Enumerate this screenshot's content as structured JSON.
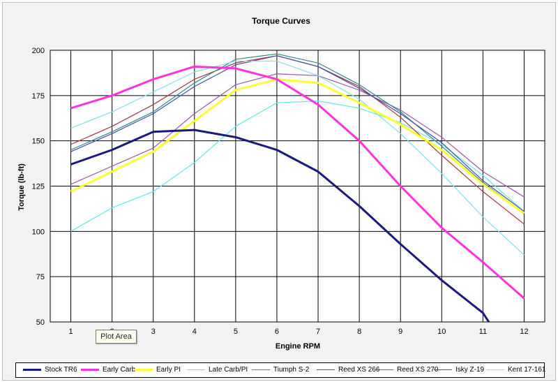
{
  "tooltip": "Plot Area",
  "chart_data": {
    "type": "line",
    "title": "Torque Curves",
    "xlabel": "Engine  RPM",
    "ylabel": "Torque (lb-ft)",
    "x": [
      1,
      2,
      3,
      4,
      5,
      6,
      7,
      8,
      9,
      10,
      11,
      12
    ],
    "xlim": [
      0.5,
      12.5
    ],
    "ylim": [
      50,
      200
    ],
    "yticks": [
      50,
      75,
      100,
      125,
      150,
      175,
      200
    ],
    "grid": true,
    "legend_position": "bottom",
    "series": [
      {
        "name": "Stock TR6",
        "color": "#1a1a7a",
        "width": 3,
        "values": [
          137,
          145,
          155,
          156,
          152,
          145,
          133,
          114,
          93,
          73,
          55,
          null
        ]
      },
      {
        "name": "Early Carb",
        "color": "#ff33dd",
        "width": 3,
        "values": [
          168,
          175,
          184,
          191,
          190,
          184,
          170,
          150,
          125,
          102,
          83,
          63
        ]
      },
      {
        "name": "Early PI",
        "color": "#ffff33",
        "width": 3,
        "values": [
          122,
          133,
          144,
          161,
          178,
          184,
          182,
          171,
          159,
          145,
          126,
          110
        ]
      },
      {
        "name": "Late Carb/PI",
        "color": "#66e6ee",
        "width": 1.2,
        "values": [
          100,
          113,
          122,
          138,
          158,
          171,
          172,
          168,
          160,
          148,
          131,
          111
        ]
      },
      {
        "name": "Tiumph S-2",
        "color": "#9b5aa8",
        "width": 1.2,
        "values": [
          126,
          136,
          146,
          165,
          181,
          187,
          186,
          178,
          167,
          152,
          133,
          119
        ]
      },
      {
        "name": "Reed XS 266",
        "color": "#a03a3a",
        "width": 1.2,
        "values": [
          148,
          158,
          170,
          184,
          193,
          197,
          191,
          180,
          163,
          142,
          122,
          104
        ]
      },
      {
        "name": "Reed XS 270",
        "color": "#2f8a8a",
        "width": 1.2,
        "values": [
          145,
          155,
          166,
          182,
          195,
          198,
          193,
          181,
          166,
          147,
          127,
          110
        ]
      },
      {
        "name": "Isky Z-19",
        "color": "#4a4aa6",
        "width": 1.2,
        "values": [
          144,
          154,
          165,
          180,
          192,
          197,
          191,
          179,
          165,
          149,
          128,
          111
        ]
      },
      {
        "name": "Kent 17-161",
        "color": "#88ddee",
        "width": 1.2,
        "values": [
          157,
          166,
          177,
          188,
          194,
          194,
          186,
          173,
          154,
          132,
          108,
          87
        ]
      }
    ]
  }
}
